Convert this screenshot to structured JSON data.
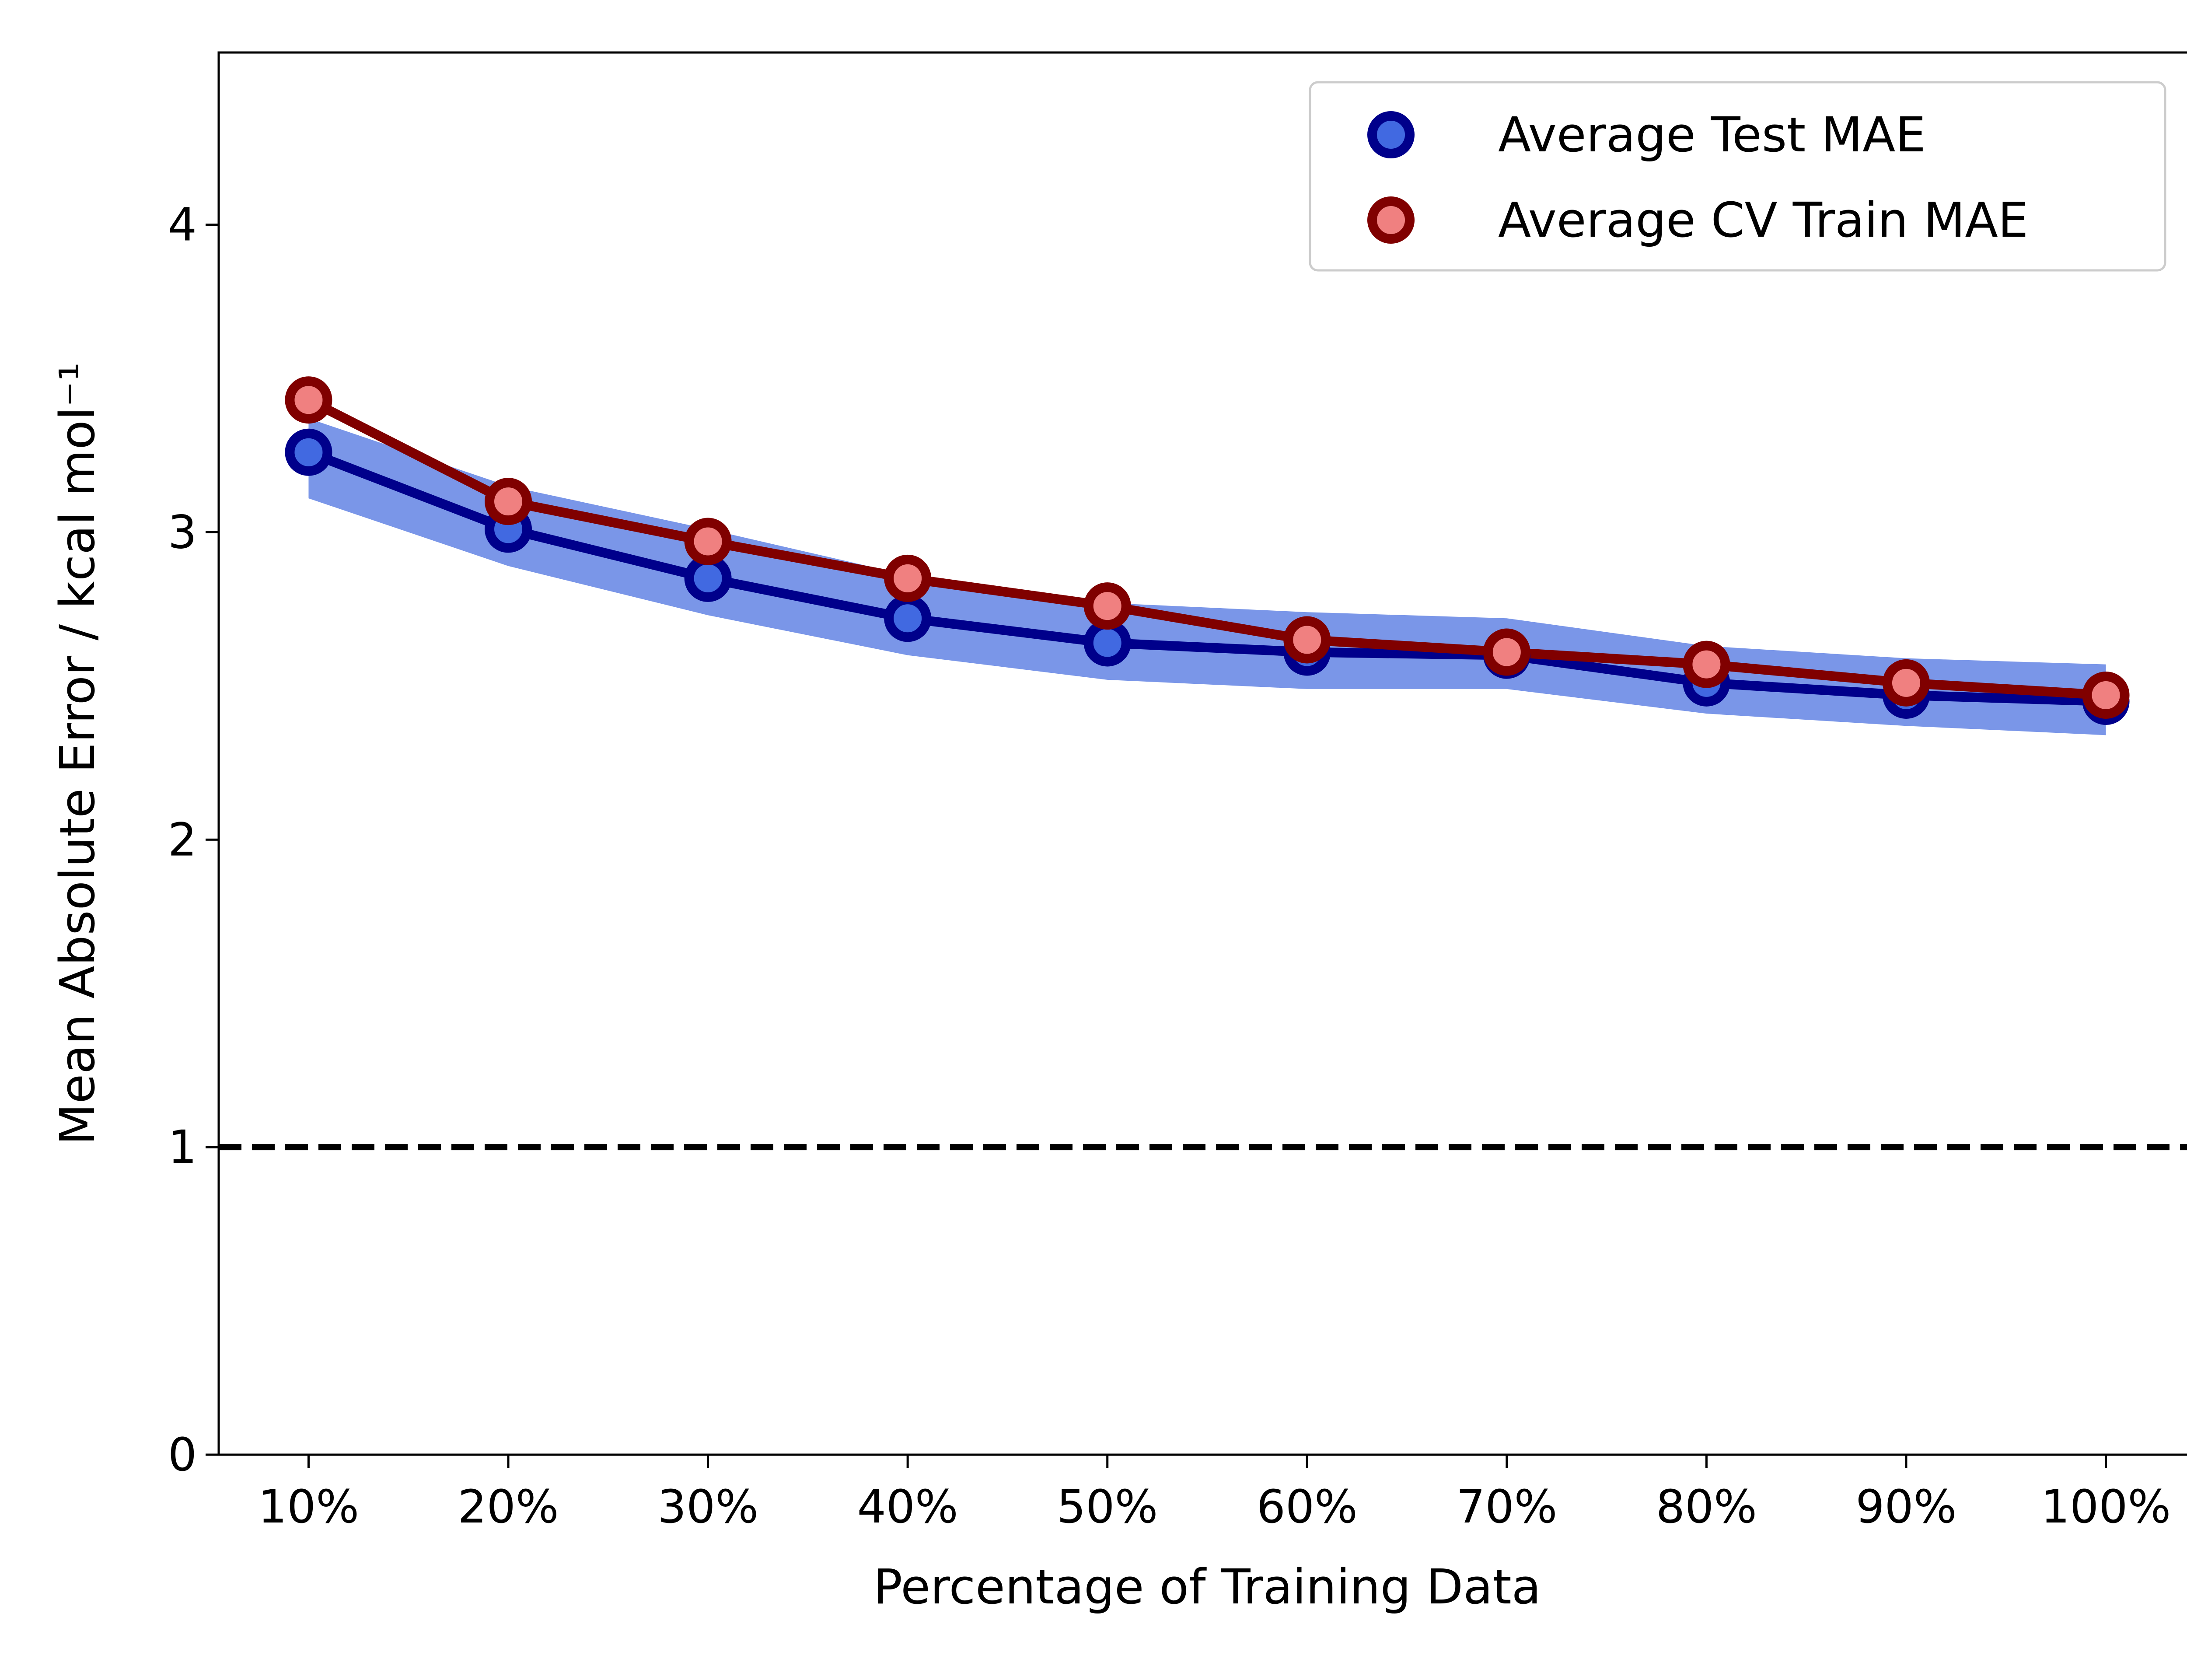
{
  "chart_data": {
    "type": "line",
    "title": "",
    "xlabel": "Percentage of Training Data",
    "ylabel": "Mean Absolute Error / kcal mol⁻¹",
    "categories": [
      "10%",
      "20%",
      "30%",
      "40%",
      "50%",
      "60%",
      "70%",
      "80%",
      "90%",
      "100%"
    ],
    "ylim": [
      0,
      4.56
    ],
    "yticks": [
      0,
      1,
      2,
      3,
      4
    ],
    "ytick_labels": [
      "0",
      "1",
      "2",
      "3",
      "4"
    ],
    "grid": false,
    "legend_position": "top-right",
    "series": [
      {
        "name": "Average Test MAE",
        "values": [
          3.26,
          3.01,
          2.85,
          2.72,
          2.64,
          2.61,
          2.6,
          2.51,
          2.47,
          2.45
        ],
        "band_lower": [
          3.11,
          2.89,
          2.73,
          2.6,
          2.52,
          2.49,
          2.49,
          2.41,
          2.37,
          2.34
        ],
        "band_upper": [
          3.37,
          3.15,
          3.01,
          2.86,
          2.77,
          2.74,
          2.72,
          2.63,
          2.59,
          2.57
        ],
        "line_color": "#00008b",
        "marker_fill": "#4169e1",
        "band_color": "#7a96e8"
      },
      {
        "name": "Average CV Train MAE",
        "values": [
          3.43,
          3.1,
          2.97,
          2.85,
          2.76,
          2.65,
          2.61,
          2.57,
          2.51,
          2.47
        ],
        "line_color": "#800000",
        "marker_fill": "#f08080"
      }
    ],
    "reference_line": {
      "y": 1,
      "style": "dashed",
      "color": "#000000"
    }
  }
}
